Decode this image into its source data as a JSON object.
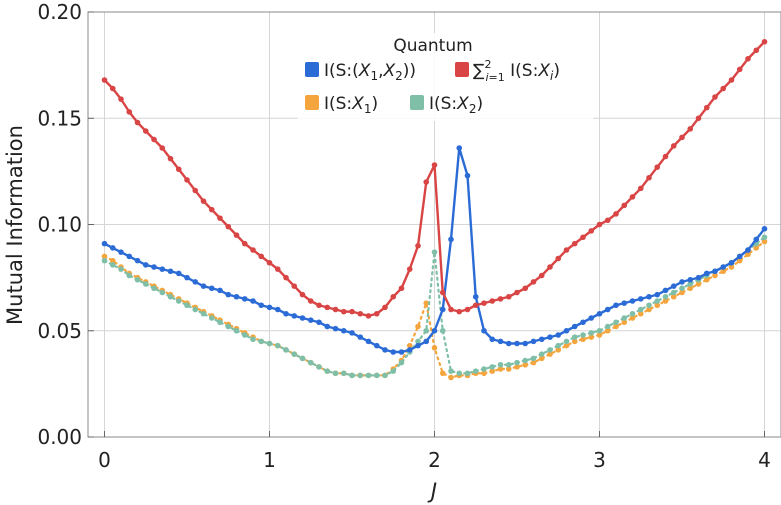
{
  "chart_data": {
    "type": "line",
    "title": "",
    "xlabel": "J",
    "ylabel": "Mutual Information",
    "xlim": [
      -0.1,
      4.1
    ],
    "ylim": [
      0.0,
      0.2
    ],
    "x_ticks": [
      "0",
      "1",
      "2",
      "3",
      "4"
    ],
    "y_ticks": [
      "0.00",
      "0.05",
      "0.10",
      "0.15",
      "0.20"
    ],
    "grid": true,
    "legend": {
      "title": "Quantum",
      "placement": "top-center",
      "entries": [
        {
          "label": "I(S:(X₁,X₂))",
          "color": "#2b6bd6"
        },
        {
          "label": "∑²ᵢ₌₁ I(S:Xᵢ)",
          "color": "#d94545"
        },
        {
          "label": "I(S:X₁)",
          "color": "#f5a53d"
        },
        {
          "label": "I(S:X₂)",
          "color": "#7fbfa8"
        }
      ]
    },
    "series": [
      {
        "name": "I(S:(X₁,X₂))",
        "color": "#2b6bd6",
        "style": "solid",
        "x": [
          0.0,
          0.05,
          0.1,
          0.15,
          0.2,
          0.25,
          0.3,
          0.35,
          0.4,
          0.45,
          0.5,
          0.55,
          0.6,
          0.65,
          0.7,
          0.75,
          0.8,
          0.85,
          0.9,
          0.95,
          1.0,
          1.05,
          1.1,
          1.15,
          1.2,
          1.25,
          1.3,
          1.35,
          1.4,
          1.45,
          1.5,
          1.55,
          1.6,
          1.65,
          1.7,
          1.75,
          1.8,
          1.85,
          1.9,
          1.95,
          2.0,
          2.05,
          2.1,
          2.15,
          2.2,
          2.25,
          2.3,
          2.35,
          2.4,
          2.45,
          2.5,
          2.55,
          2.6,
          2.65,
          2.7,
          2.75,
          2.8,
          2.85,
          2.9,
          2.95,
          3.0,
          3.05,
          3.1,
          3.15,
          3.2,
          3.25,
          3.3,
          3.35,
          3.4,
          3.45,
          3.5,
          3.55,
          3.6,
          3.65,
          3.7,
          3.75,
          3.8,
          3.85,
          3.9,
          3.95,
          4.0
        ],
        "y": [
          0.091,
          0.089,
          0.087,
          0.085,
          0.083,
          0.081,
          0.08,
          0.079,
          0.078,
          0.077,
          0.075,
          0.073,
          0.071,
          0.07,
          0.069,
          0.067,
          0.066,
          0.065,
          0.064,
          0.062,
          0.061,
          0.06,
          0.058,
          0.057,
          0.056,
          0.055,
          0.054,
          0.052,
          0.051,
          0.05,
          0.049,
          0.047,
          0.045,
          0.043,
          0.041,
          0.04,
          0.04,
          0.041,
          0.043,
          0.045,
          0.05,
          0.06,
          0.093,
          0.136,
          0.123,
          0.066,
          0.05,
          0.046,
          0.045,
          0.044,
          0.044,
          0.044,
          0.045,
          0.046,
          0.047,
          0.048,
          0.05,
          0.052,
          0.054,
          0.056,
          0.058,
          0.06,
          0.062,
          0.063,
          0.064,
          0.065,
          0.066,
          0.067,
          0.069,
          0.071,
          0.073,
          0.074,
          0.075,
          0.077,
          0.078,
          0.08,
          0.082,
          0.085,
          0.088,
          0.093,
          0.098
        ]
      },
      {
        "name": "∑²ᵢ₌₁ I(S:Xᵢ)",
        "color": "#d94545",
        "style": "solid",
        "x": [
          0.0,
          0.05,
          0.1,
          0.15,
          0.2,
          0.25,
          0.3,
          0.35,
          0.4,
          0.45,
          0.5,
          0.55,
          0.6,
          0.65,
          0.7,
          0.75,
          0.8,
          0.85,
          0.9,
          0.95,
          1.0,
          1.05,
          1.1,
          1.15,
          1.2,
          1.25,
          1.3,
          1.35,
          1.4,
          1.45,
          1.5,
          1.55,
          1.6,
          1.65,
          1.7,
          1.75,
          1.8,
          1.85,
          1.9,
          1.95,
          2.0,
          2.05,
          2.1,
          2.15,
          2.2,
          2.25,
          2.3,
          2.35,
          2.4,
          2.45,
          2.5,
          2.55,
          2.6,
          2.65,
          2.7,
          2.75,
          2.8,
          2.85,
          2.9,
          2.95,
          3.0,
          3.05,
          3.1,
          3.15,
          3.2,
          3.25,
          3.3,
          3.35,
          3.4,
          3.45,
          3.5,
          3.55,
          3.6,
          3.65,
          3.7,
          3.75,
          3.8,
          3.85,
          3.9,
          3.95,
          4.0
        ],
        "y": [
          0.168,
          0.164,
          0.159,
          0.153,
          0.148,
          0.144,
          0.14,
          0.136,
          0.131,
          0.126,
          0.121,
          0.116,
          0.111,
          0.107,
          0.103,
          0.099,
          0.095,
          0.091,
          0.088,
          0.085,
          0.082,
          0.079,
          0.075,
          0.071,
          0.067,
          0.064,
          0.062,
          0.061,
          0.06,
          0.059,
          0.059,
          0.058,
          0.057,
          0.058,
          0.061,
          0.066,
          0.07,
          0.079,
          0.09,
          0.12,
          0.128,
          0.068,
          0.06,
          0.059,
          0.06,
          0.062,
          0.063,
          0.064,
          0.065,
          0.066,
          0.068,
          0.07,
          0.073,
          0.076,
          0.08,
          0.084,
          0.088,
          0.091,
          0.094,
          0.097,
          0.1,
          0.102,
          0.105,
          0.109,
          0.113,
          0.117,
          0.122,
          0.127,
          0.132,
          0.137,
          0.141,
          0.145,
          0.15,
          0.155,
          0.16,
          0.164,
          0.168,
          0.173,
          0.178,
          0.182,
          0.186
        ]
      },
      {
        "name": "I(S:X₁)",
        "color": "#f5a53d",
        "style": "dotted",
        "x": [
          0.0,
          0.05,
          0.1,
          0.15,
          0.2,
          0.25,
          0.3,
          0.35,
          0.4,
          0.45,
          0.5,
          0.55,
          0.6,
          0.65,
          0.7,
          0.75,
          0.8,
          0.85,
          0.9,
          0.95,
          1.0,
          1.05,
          1.1,
          1.15,
          1.2,
          1.25,
          1.3,
          1.35,
          1.4,
          1.45,
          1.5,
          1.55,
          1.6,
          1.65,
          1.7,
          1.75,
          1.8,
          1.85,
          1.9,
          1.95,
          2.0,
          2.05,
          2.1,
          2.15,
          2.2,
          2.25,
          2.3,
          2.35,
          2.4,
          2.45,
          2.5,
          2.55,
          2.6,
          2.65,
          2.7,
          2.75,
          2.8,
          2.85,
          2.9,
          2.95,
          3.0,
          3.05,
          3.1,
          3.15,
          3.2,
          3.25,
          3.3,
          3.35,
          3.4,
          3.45,
          3.5,
          3.55,
          3.6,
          3.65,
          3.7,
          3.75,
          3.8,
          3.85,
          3.9,
          3.95,
          4.0
        ],
        "y": [
          0.085,
          0.083,
          0.08,
          0.077,
          0.075,
          0.073,
          0.071,
          0.069,
          0.067,
          0.065,
          0.063,
          0.061,
          0.059,
          0.057,
          0.055,
          0.053,
          0.051,
          0.049,
          0.047,
          0.045,
          0.044,
          0.043,
          0.041,
          0.039,
          0.037,
          0.035,
          0.033,
          0.031,
          0.03,
          0.03,
          0.029,
          0.029,
          0.029,
          0.029,
          0.029,
          0.032,
          0.036,
          0.043,
          0.052,
          0.063,
          0.042,
          0.03,
          0.028,
          0.029,
          0.029,
          0.03,
          0.03,
          0.031,
          0.032,
          0.032,
          0.033,
          0.034,
          0.035,
          0.037,
          0.039,
          0.041,
          0.043,
          0.045,
          0.046,
          0.047,
          0.048,
          0.05,
          0.052,
          0.054,
          0.056,
          0.058,
          0.06,
          0.062,
          0.064,
          0.066,
          0.068,
          0.07,
          0.072,
          0.074,
          0.076,
          0.078,
          0.08,
          0.083,
          0.086,
          0.089,
          0.092
        ]
      },
      {
        "name": "I(S:X₂)",
        "color": "#7fbfa8",
        "style": "dotted",
        "x": [
          0.0,
          0.05,
          0.1,
          0.15,
          0.2,
          0.25,
          0.3,
          0.35,
          0.4,
          0.45,
          0.5,
          0.55,
          0.6,
          0.65,
          0.7,
          0.75,
          0.8,
          0.85,
          0.9,
          0.95,
          1.0,
          1.05,
          1.1,
          1.15,
          1.2,
          1.25,
          1.3,
          1.35,
          1.4,
          1.45,
          1.5,
          1.55,
          1.6,
          1.65,
          1.7,
          1.75,
          1.8,
          1.85,
          1.9,
          1.95,
          2.0,
          2.05,
          2.1,
          2.15,
          2.2,
          2.25,
          2.3,
          2.35,
          2.4,
          2.45,
          2.5,
          2.55,
          2.6,
          2.65,
          2.7,
          2.75,
          2.8,
          2.85,
          2.9,
          2.95,
          3.0,
          3.05,
          3.1,
          3.15,
          3.2,
          3.25,
          3.3,
          3.35,
          3.4,
          3.45,
          3.5,
          3.55,
          3.6,
          3.65,
          3.7,
          3.75,
          3.8,
          3.85,
          3.9,
          3.95,
          4.0
        ],
        "y": [
          0.083,
          0.081,
          0.079,
          0.076,
          0.074,
          0.072,
          0.07,
          0.068,
          0.066,
          0.064,
          0.062,
          0.06,
          0.058,
          0.056,
          0.054,
          0.052,
          0.05,
          0.048,
          0.046,
          0.045,
          0.044,
          0.043,
          0.041,
          0.039,
          0.037,
          0.035,
          0.033,
          0.031,
          0.03,
          0.03,
          0.029,
          0.029,
          0.029,
          0.029,
          0.029,
          0.031,
          0.035,
          0.04,
          0.045,
          0.05,
          0.087,
          0.05,
          0.031,
          0.03,
          0.03,
          0.031,
          0.032,
          0.033,
          0.034,
          0.034,
          0.035,
          0.036,
          0.037,
          0.039,
          0.041,
          0.043,
          0.045,
          0.047,
          0.048,
          0.049,
          0.05,
          0.052,
          0.054,
          0.056,
          0.058,
          0.06,
          0.062,
          0.064,
          0.066,
          0.068,
          0.07,
          0.072,
          0.074,
          0.076,
          0.078,
          0.08,
          0.082,
          0.085,
          0.088,
          0.091,
          0.094
        ]
      }
    ]
  }
}
